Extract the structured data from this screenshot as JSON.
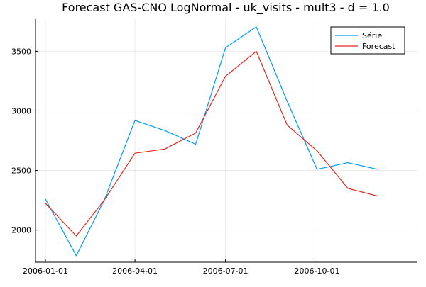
{
  "chart_data": {
    "type": "line",
    "title": "Forecast GAS-CNO LogNormal - uk_visits - mult3 - d = 1.0",
    "xlabel": "",
    "ylabel": "",
    "x": [
      "2006-01-01",
      "2006-02-01",
      "2006-03-01",
      "2006-04-01",
      "2006-05-01",
      "2006-06-01",
      "2006-07-01",
      "2006-08-01",
      "2006-09-01",
      "2006-10-01",
      "2006-11-01",
      "2006-12-01"
    ],
    "x_ticks": [
      "2006-01-01",
      "2006-04-01",
      "2006-07-01",
      "2006-10-01"
    ],
    "y_ticks": [
      2000,
      2500,
      3000,
      3500
    ],
    "ylim": [
      1730,
      3770
    ],
    "xlim": [
      "2005-12-22",
      "2007-01-10"
    ],
    "grid": true,
    "legend_position": "top-right",
    "series": [
      {
        "name": "Série",
        "color": "#009AF9",
        "values": [
          2260,
          1785,
          2250,
          2920,
          2835,
          2720,
          3530,
          3705,
          3080,
          2510,
          2565,
          2510
        ]
      },
      {
        "name": "Forecast",
        "color": "#E6261F",
        "values": [
          2225,
          1950,
          2250,
          2645,
          2680,
          2815,
          3290,
          3500,
          2880,
          2665,
          2350,
          2285
        ]
      }
    ]
  }
}
